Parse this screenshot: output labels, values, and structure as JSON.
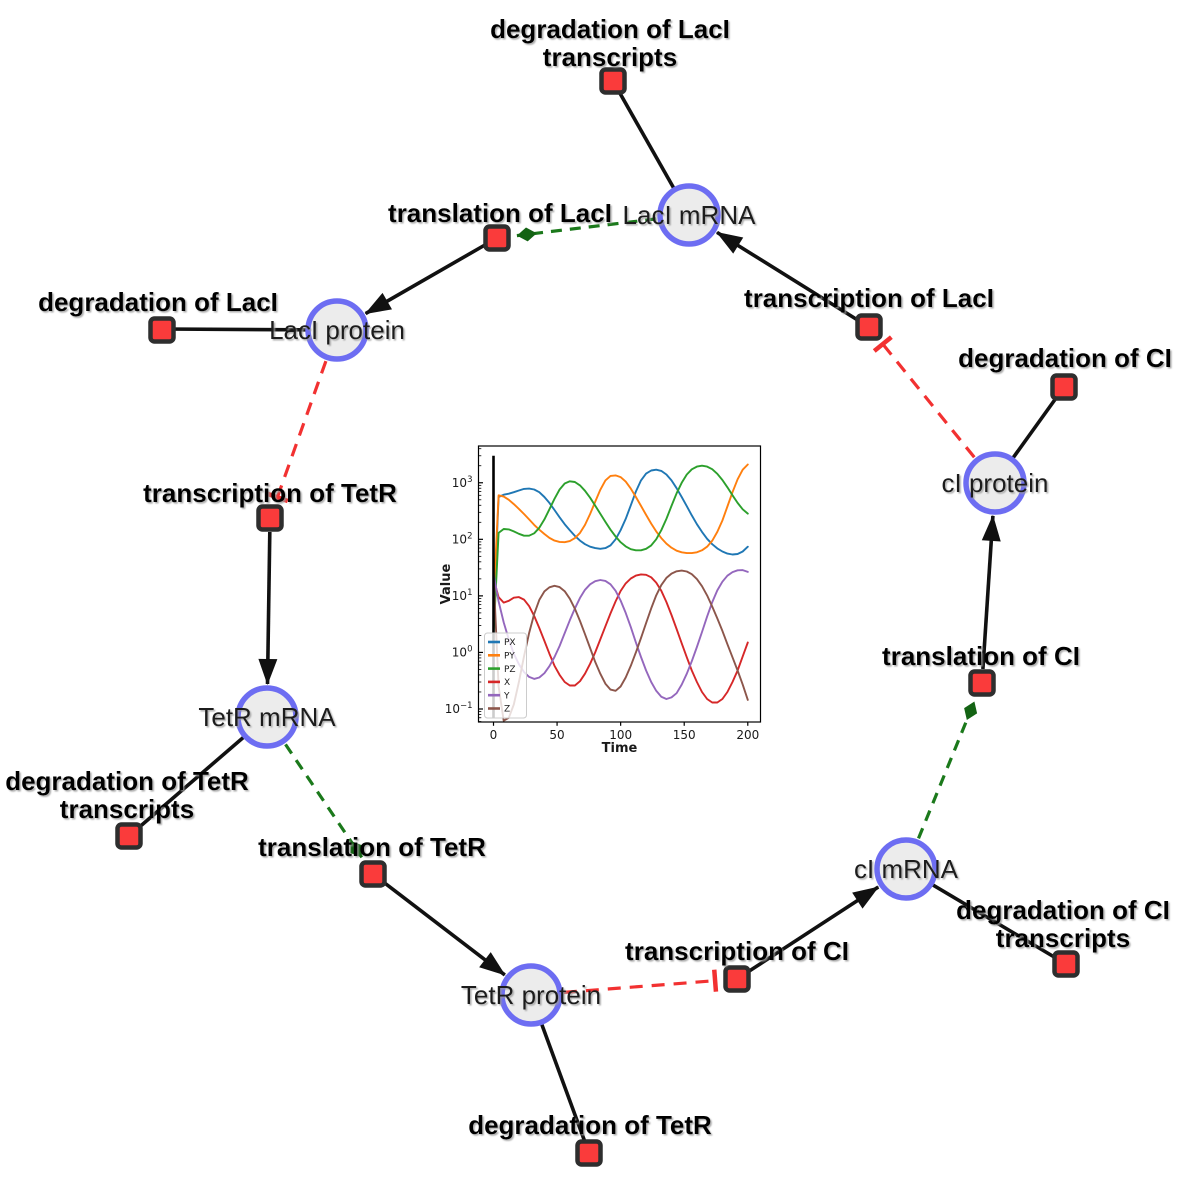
{
  "diagram": {
    "species": [
      {
        "id": "laci-mrna",
        "label": "LacI mRNA"
      },
      {
        "id": "laci-protein",
        "label": "LacI protein"
      },
      {
        "id": "tetr-mrna",
        "label": "TetR mRNA"
      },
      {
        "id": "tetr-protein",
        "label": "TetR protein"
      },
      {
        "id": "ci-mrna",
        "label": "cI mRNA"
      },
      {
        "id": "ci-protein",
        "label": "cI protein"
      }
    ],
    "reactions": [
      {
        "id": "degradation-of-laci-transcripts",
        "label1": "degradation of LacI",
        "label2": "transcripts"
      },
      {
        "id": "translation-of-laci",
        "label1": "translation of LacI"
      },
      {
        "id": "degradation-of-laci",
        "label1": "degradation of LacI"
      },
      {
        "id": "transcription-of-laci",
        "label1": "transcription of LacI"
      },
      {
        "id": "degradation-of-ci",
        "label1": "degradation of CI"
      },
      {
        "id": "transcription-of-tetr",
        "label1": "transcription of TetR"
      },
      {
        "id": "degradation-of-tetr-transcripts",
        "label1": "degradation of TetR",
        "label2": "transcripts"
      },
      {
        "id": "translation-of-tetr",
        "label1": "translation of TetR"
      },
      {
        "id": "degradation-of-tetr",
        "label1": "degradation of TetR"
      },
      {
        "id": "transcription-of-ci",
        "label1": "transcription of CI"
      },
      {
        "id": "degradation-of-ci-transcripts",
        "label1": "degradation of CI",
        "label2": "transcripts"
      },
      {
        "id": "translation-of-ci",
        "label1": "translation of CI"
      }
    ],
    "edges": [
      {
        "from": "laci-mrna",
        "to": "degradation-of-laci-transcripts",
        "type": "consumption"
      },
      {
        "from": "laci-protein",
        "to": "degradation-of-laci",
        "type": "consumption"
      },
      {
        "from": "tetr-mrna",
        "to": "degradation-of-tetr-transcripts",
        "type": "consumption"
      },
      {
        "from": "tetr-protein",
        "to": "degradation-of-tetr",
        "type": "consumption"
      },
      {
        "from": "ci-mrna",
        "to": "degradation-of-ci-transcripts",
        "type": "consumption"
      },
      {
        "from": "ci-protein",
        "to": "degradation-of-ci",
        "type": "consumption"
      },
      {
        "from": "translation-of-laci",
        "to": "laci-protein",
        "type": "production"
      },
      {
        "from": "transcription-of-laci",
        "to": "laci-mrna",
        "type": "production"
      },
      {
        "from": "transcription-of-tetr",
        "to": "tetr-mrna",
        "type": "production"
      },
      {
        "from": "translation-of-tetr",
        "to": "tetr-protein",
        "type": "production"
      },
      {
        "from": "transcription-of-ci",
        "to": "ci-mrna",
        "type": "production"
      },
      {
        "from": "translation-of-ci",
        "to": "ci-protein",
        "type": "production"
      },
      {
        "from": "laci-mrna",
        "to": "translation-of-laci",
        "type": "catalysis"
      },
      {
        "from": "tetr-mrna",
        "to": "translation-of-tetr",
        "type": "catalysis"
      },
      {
        "from": "ci-mrna",
        "to": "translation-of-ci",
        "type": "catalysis"
      },
      {
        "from": "laci-protein",
        "to": "transcription-of-tetr",
        "type": "inhibition"
      },
      {
        "from": "tetr-protein",
        "to": "transcription-of-ci",
        "type": "inhibition"
      },
      {
        "from": "ci-protein",
        "to": "transcription-of-laci",
        "type": "inhibition"
      }
    ],
    "colors": {
      "species_fill": "#ececec",
      "species_border": "#6d6df2",
      "reaction_fill": "#fa3b3b",
      "reaction_border": "#2e2e2e",
      "edge_black": "#111111",
      "edge_catalysis_green": "#1b791b",
      "edge_inhibition_red": "#f23131"
    }
  },
  "chart_data": {
    "type": "line",
    "title": "",
    "xlabel": "Time",
    "ylabel": "Value",
    "x_ticks": [
      0,
      50,
      100,
      150,
      200
    ],
    "y_scale": "log",
    "y_ticks_exp": [
      -1,
      0,
      1,
      2,
      3
    ],
    "xlim": [
      -11.8,
      210
    ],
    "ylim_exp": [
      -1.23,
      3.65
    ],
    "grid": false,
    "legend_position": "lower left",
    "initial_vertical_line_t": 0,
    "t_start": 0,
    "t_step": 4,
    "series": [
      {
        "name": "PX",
        "color": "#1f77b4",
        "values": [
          4,
          560,
          615,
          640,
          680,
          730,
          780,
          790,
          760,
          680,
          560,
          440,
          330,
          245,
          185,
          145,
          115,
          95,
          82,
          74,
          70,
          68,
          70,
          78,
          100,
          145,
          230,
          400,
          700,
          1100,
          1450,
          1650,
          1700,
          1620,
          1400,
          1100,
          800,
          560,
          385,
          265,
          185,
          135,
          102,
          82,
          69,
          61,
          56,
          54,
          55,
          61,
          74
        ]
      },
      {
        "name": "PY",
        "color": "#ff7f0e",
        "values": [
          8,
          600,
          570,
          500,
          420,
          345,
          280,
          225,
          180,
          148,
          124,
          106,
          95,
          90,
          89,
          93,
          105,
          130,
          180,
          280,
          460,
          750,
          1100,
          1320,
          1350,
          1260,
          1050,
          790,
          560,
          390,
          270,
          190,
          138,
          105,
          84,
          71,
          63,
          59,
          57,
          57,
          59,
          64,
          74,
          94,
          135,
          215,
          380,
          680,
          1150,
          1700,
          2100
        ]
      },
      {
        "name": "PZ",
        "color": "#2ca02c",
        "values": [
          2,
          130,
          152,
          150,
          138,
          125,
          116,
          116,
          128,
          160,
          225,
          340,
          520,
          760,
          970,
          1060,
          1030,
          900,
          720,
          545,
          395,
          283,
          203,
          148,
          112,
          89,
          75,
          67,
          64,
          64,
          68,
          78,
          100,
          145,
          230,
          390,
          650,
          1000,
          1400,
          1730,
          1930,
          2000,
          1930,
          1740,
          1440,
          1120,
          830,
          600,
          440,
          340,
          285
        ]
      },
      {
        "name": "X",
        "color": "#d62728",
        "values": [
          20,
          9.5,
          7.6,
          8.2,
          9.3,
          9.5,
          8.6,
          6.6,
          4.4,
          2.7,
          1.6,
          0.95,
          0.58,
          0.4,
          0.3,
          0.26,
          0.26,
          0.31,
          0.42,
          0.63,
          1.0,
          1.7,
          2.9,
          4.9,
          8.0,
          12.2,
          16.6,
          20.3,
          22.8,
          24.0,
          23.6,
          21.3,
          17.2,
          12.3,
          7.8,
          4.6,
          2.6,
          1.45,
          0.82,
          0.48,
          0.3,
          0.2,
          0.15,
          0.13,
          0.13,
          0.15,
          0.2,
          0.3,
          0.48,
          0.85,
          1.5
        ]
      },
      {
        "name": "Y",
        "color": "#9467bd",
        "values": [
          25,
          8,
          3.4,
          1.7,
          0.95,
          0.62,
          0.45,
          0.37,
          0.34,
          0.36,
          0.43,
          0.57,
          0.83,
          1.3,
          2.2,
          3.7,
          6.0,
          9.2,
          12.8,
          16.0,
          18.2,
          19.1,
          18.4,
          16.0,
          12.3,
          8.3,
          5.0,
          2.8,
          1.5,
          0.83,
          0.48,
          0.3,
          0.21,
          0.165,
          0.15,
          0.16,
          0.19,
          0.27,
          0.42,
          0.7,
          1.25,
          2.3,
          4.3,
          7.7,
          12.5,
          17.8,
          22.7,
          26.3,
          28.3,
          28.6,
          26.5
        ]
      },
      {
        "name": "Z",
        "color": "#8c564b",
        "values": [
          25,
          0.25,
          0.062,
          0.07,
          0.12,
          0.3,
          0.85,
          2.2,
          4.8,
          8.5,
          12,
          14.2,
          15.1,
          14.3,
          12.1,
          8.9,
          5.9,
          3.6,
          2.1,
          1.2,
          0.68,
          0.42,
          0.28,
          0.22,
          0.21,
          0.25,
          0.36,
          0.58,
          1.0,
          1.8,
          3.3,
          6.0,
          10.2,
          15.5,
          20.8,
          24.8,
          27.2,
          28.0,
          27.0,
          24.2,
          19.8,
          14.8,
          10.2,
          6.5,
          4.0,
          2.4,
          1.4,
          0.82,
          0.48,
          0.27,
          0.145
        ]
      }
    ]
  }
}
